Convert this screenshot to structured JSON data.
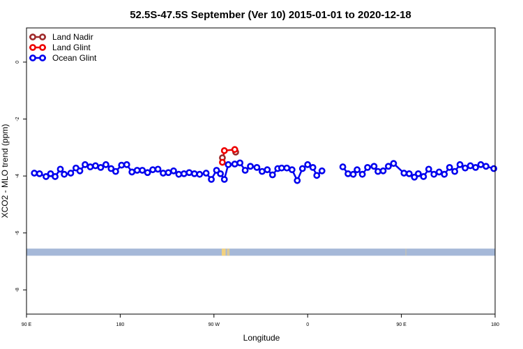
{
  "chart_data": {
    "type": "scatter",
    "title": "52.5S-47.5S September (Ver 10)   2015-01-01 to 2020-12-18",
    "xlabel": "Longitude",
    "ylabel": "XCO2 - MLO trend (ppm)",
    "xlim": [
      90,
      450
    ],
    "ylim": [
      -8.85,
      1.2
    ],
    "x_ticks": [
      {
        "value": 90,
        "label": "90 E"
      },
      {
        "value": 162,
        "label": "180"
      },
      {
        "value": 234,
        "label": "90 W"
      },
      {
        "value": 306,
        "label": "0"
      },
      {
        "value": 378,
        "label": "90 E"
      },
      {
        "value": 450,
        "label": "180"
      }
    ],
    "y_ticks": [
      {
        "value": 0,
        "label": "0"
      },
      {
        "value": -2,
        "label": "-2"
      },
      {
        "value": -4,
        "label": "-4"
      },
      {
        "value": -6,
        "label": "-6"
      },
      {
        "value": -8,
        "label": "-8"
      }
    ],
    "grid": false,
    "legend_position": "top-left",
    "map_strip": {
      "y_top": -6.55,
      "y_bottom": -6.8,
      "ocean_color": "#a5b8d8",
      "land_color": "#f5d27a"
    },
    "series": [
      {
        "name": "Land Nadir",
        "color": "#9e2a2b",
        "points": [
          [
            240.5,
            -3.36
          ],
          [
            250.7,
            -3.16
          ]
        ]
      },
      {
        "name": "Land Glint",
        "color": "#ee0000",
        "points": [
          [
            240.5,
            -3.52
          ],
          [
            242,
            -3.11
          ],
          [
            250,
            -3.07
          ]
        ]
      },
      {
        "name": "Ocean Glint",
        "color": "#0000ee",
        "points": [
          [
            96,
            -3.9
          ],
          [
            100,
            -3.92
          ],
          [
            105,
            -4.02
          ],
          [
            108.5,
            -3.92
          ],
          [
            112,
            -4.02
          ],
          [
            116,
            -3.76
          ],
          [
            119,
            -3.94
          ],
          [
            124,
            -3.9
          ],
          [
            128,
            -3.72
          ],
          [
            131,
            -3.82
          ],
          [
            135,
            -3.6
          ],
          [
            139,
            -3.68
          ],
          [
            143,
            -3.64
          ],
          [
            147,
            -3.7
          ],
          [
            151,
            -3.6
          ],
          [
            155,
            -3.74
          ],
          [
            158.5,
            -3.84
          ],
          [
            163,
            -3.62
          ],
          [
            167,
            -3.6
          ],
          [
            171,
            -3.86
          ],
          [
            175,
            -3.8
          ],
          [
            179,
            -3.8
          ],
          [
            183,
            -3.88
          ],
          [
            187,
            -3.78
          ],
          [
            191,
            -3.76
          ],
          [
            195,
            -3.9
          ],
          [
            199,
            -3.88
          ],
          [
            203,
            -3.82
          ],
          [
            207,
            -3.94
          ],
          [
            211,
            -3.92
          ],
          [
            215,
            -3.88
          ],
          [
            219,
            -3.92
          ],
          [
            223,
            -3.94
          ],
          [
            228,
            -3.9
          ],
          [
            232,
            -4.12
          ],
          [
            236,
            -3.8
          ],
          [
            239,
            -3.92
          ],
          [
            242,
            -4.12
          ],
          [
            245,
            -3.6
          ],
          [
            250,
            -3.58
          ],
          [
            254,
            -3.54
          ],
          [
            258,
            -3.8
          ],
          [
            262,
            -3.66
          ],
          [
            267,
            -3.7
          ],
          [
            271,
            -3.84
          ],
          [
            275,
            -3.78
          ],
          [
            279,
            -3.96
          ],
          [
            283,
            -3.74
          ],
          [
            286,
            -3.72
          ],
          [
            290,
            -3.72
          ],
          [
            294,
            -3.78
          ],
          [
            298,
            -4.16
          ],
          [
            302,
            -3.74
          ],
          [
            306,
            -3.6
          ],
          [
            310,
            -3.7
          ],
          [
            313,
            -3.98
          ],
          [
            317,
            -3.82
          ],
          [
            333,
            -3.68
          ],
          [
            337,
            -3.92
          ],
          [
            341,
            -3.94
          ],
          [
            344,
            -3.78
          ],
          [
            348,
            -3.94
          ],
          [
            352,
            -3.7
          ],
          [
            357,
            -3.66
          ],
          [
            360,
            -3.84
          ],
          [
            364,
            -3.82
          ],
          [
            368,
            -3.66
          ],
          [
            372,
            -3.56
          ],
          [
            380,
            -3.9
          ],
          [
            384,
            -3.92
          ],
          [
            388,
            -4.04
          ],
          [
            391,
            -3.92
          ],
          [
            395,
            -4.02
          ],
          [
            399,
            -3.76
          ],
          [
            403,
            -3.94
          ],
          [
            407,
            -3.86
          ],
          [
            411,
            -3.94
          ],
          [
            415,
            -3.7
          ],
          [
            419,
            -3.84
          ],
          [
            423,
            -3.6
          ],
          [
            427,
            -3.72
          ],
          [
            431,
            -3.64
          ],
          [
            435,
            -3.7
          ],
          [
            439,
            -3.6
          ],
          [
            443,
            -3.66
          ],
          [
            449,
            -3.74
          ]
        ]
      }
    ]
  }
}
